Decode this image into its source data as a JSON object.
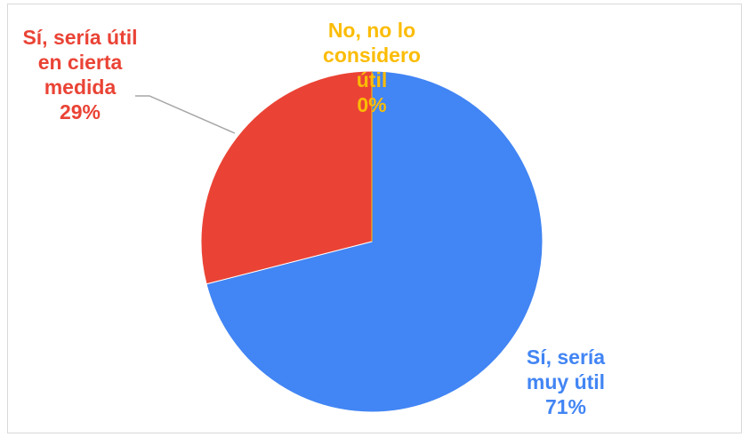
{
  "chart_data": {
    "type": "pie",
    "categories": [
      "Sí, sería muy útil",
      "Sí, sería útil en cierta medida",
      "No, no lo considero útil"
    ],
    "values": [
      71,
      29,
      0
    ],
    "unit": "%",
    "colors": [
      "#4285f4",
      "#ea4335",
      "#fbbc04"
    ],
    "labels": [
      {
        "lines": [
          "Sí, sería",
          "muy útil"
        ],
        "pct": "71%"
      },
      {
        "lines": [
          "Sí, sería útil",
          "en cierta",
          "medida"
        ],
        "pct": "29%"
      },
      {
        "lines": [
          "No, no lo",
          "considero",
          "útil"
        ],
        "pct": "0%"
      }
    ],
    "legend": "none"
  }
}
